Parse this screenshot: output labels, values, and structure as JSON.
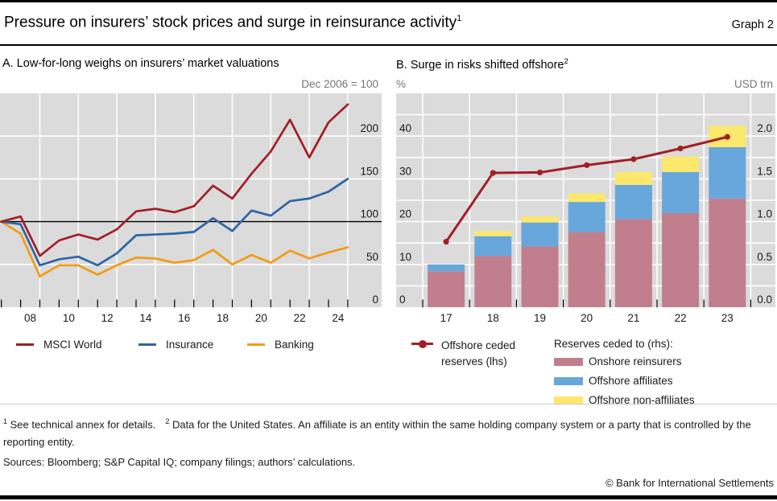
{
  "header": {
    "title": "Pressure on insurers’ stock prices and surge in reinsurance activity",
    "title_sup": "1",
    "graph_label": "Graph 2"
  },
  "colors": {
    "plot_bg": "#dbdbdb",
    "gridline": "#ffffff",
    "axis_black": "#000000",
    "red": "#a21e26",
    "blue": "#2e64a6",
    "orange": "#f39b13",
    "bar_pink": "#c17f8e",
    "bar_blue": "#67a7dc",
    "bar_yellow": "#fce86c"
  },
  "chart_data": [
    {
      "id": "panel-a",
      "type": "line",
      "title": "A. Low-for-long weighs on insurers’ market valuations",
      "unit_label": "Dec 2006 = 100",
      "x_points": [
        "Dec 06",
        "Dec 07",
        "Dec 08",
        "Dec 09",
        "Dec 10",
        "Dec 11",
        "Dec 12",
        "Dec 13",
        "Dec 14",
        "Dec 15",
        "Dec 16",
        "Dec 17",
        "Dec 18",
        "Dec 19",
        "Dec 20",
        "Dec 21",
        "Dec 22",
        "Dec 23",
        "Dec 24"
      ],
      "x_tick_labels": [
        "08",
        "10",
        "12",
        "14",
        "16",
        "18",
        "20",
        "22",
        "24"
      ],
      "ylim": [
        0,
        250
      ],
      "yticks": [
        0,
        50,
        100,
        150,
        200
      ],
      "baseline": 100,
      "grid": "horizontal every 50, vertical every 2 years",
      "legend_position": "bottom",
      "series": [
        {
          "name": "MSCI World",
          "color": "#a21e26",
          "values": [
            100,
            106,
            60,
            78,
            85,
            79,
            91,
            112,
            115,
            111,
            118,
            142,
            127,
            156,
            182,
            219,
            175,
            216,
            237
          ]
        },
        {
          "name": "Insurance",
          "color": "#2e64a6",
          "values": [
            100,
            97,
            49,
            56,
            59,
            49,
            63,
            84,
            85,
            86,
            88,
            104,
            89,
            113,
            107,
            124,
            127,
            135,
            150
          ]
        },
        {
          "name": "Banking",
          "color": "#f39b13",
          "values": [
            100,
            86,
            36,
            49,
            49,
            38,
            49,
            58,
            57,
            52,
            55,
            67,
            50,
            61,
            52,
            66,
            57,
            64,
            70
          ]
        }
      ]
    },
    {
      "id": "panel-b",
      "type": "bar+line",
      "title": "B. Surge in risks shifted offshore",
      "title_sup": "2",
      "left_unit": "%",
      "right_unit": "USD trn",
      "categories": [
        "17",
        "18",
        "19",
        "20",
        "21",
        "22",
        "23"
      ],
      "left_ylim": [
        0,
        50
      ],
      "left_yticks": [
        0,
        10,
        20,
        30,
        40
      ],
      "right_ylim": [
        0,
        2.5
      ],
      "right_yticks": [
        "0.0",
        "0.5",
        "1.0",
        "1.5",
        "2.0"
      ],
      "grid": "horizontal every 5 left-units, vertical between year slots",
      "line": {
        "name": "Offshore ceded reserves (lhs)",
        "color": "#a21e26",
        "values": [
          15.3,
          31.4,
          31.5,
          33.2,
          34.6,
          37.1,
          39.8
        ]
      },
      "bars_header": "Reserves ceded to (rhs):",
      "bar_series": [
        {
          "name": "Onshore reinsurers",
          "color": "#c17f8e",
          "values": [
            0.42,
            0.6,
            0.71,
            0.88,
            1.03,
            1.1,
            1.27
          ]
        },
        {
          "name": "Offshore affiliates",
          "color": "#67a7dc",
          "values": [
            0.08,
            0.23,
            0.28,
            0.35,
            0.4,
            0.48,
            0.6
          ]
        },
        {
          "name": "Offshore non-affiliates",
          "color": "#fce86c",
          "values": [
            0.0,
            0.06,
            0.07,
            0.1,
            0.15,
            0.18,
            0.25
          ]
        }
      ],
      "bar_totals": [
        0.5,
        0.89,
        1.06,
        1.33,
        1.58,
        1.76,
        2.12
      ]
    }
  ],
  "footnotes": {
    "fn1_sup": "1",
    "fn1": "See technical annex for details.",
    "fn2_sup": "2",
    "fn2": "Data for the United States. An affiliate is an entity within the same holding company system or a party that is controlled by the reporting entity.",
    "sources": "Sources: Bloomberg; S&P Capital IQ; company filings; authors’ calculations.",
    "copyright": "© Bank for International Settlements"
  }
}
